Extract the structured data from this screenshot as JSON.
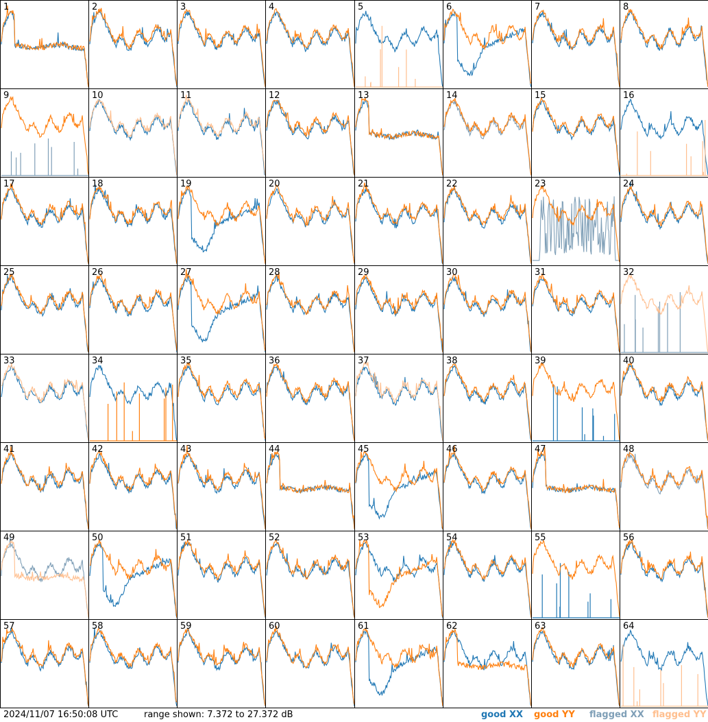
{
  "footer": {
    "timestamp": "2024/11/07 16:50:08 UTC",
    "range_text": "range shown: 7.372 to 27.372 dB"
  },
  "legend": {
    "good_xx": "good XX",
    "good_yy": "good YY",
    "flagged_xx": "flagged XX",
    "flagged_yy": "flagged YY"
  },
  "colors": {
    "good_xx": "#1f77b4",
    "good_yy": "#ff7f0e",
    "flagged_xx": "#7f9fb7",
    "flagged_yy": "#ffbf8f"
  },
  "chart_data": {
    "type": "line",
    "ylim": [
      7.372,
      27.372
    ],
    "grid": false,
    "legend_position": "bottom-right",
    "panels": [
      {
        "id": "1",
        "xx": "good",
        "yy": "good",
        "xx_shape": "drop",
        "yy_shape": "drop"
      },
      {
        "id": "2",
        "xx": "good",
        "yy": "good",
        "xx_shape": "normal",
        "yy_shape": "normal"
      },
      {
        "id": "3",
        "xx": "good",
        "yy": "good",
        "xx_shape": "normal",
        "yy_shape": "normal"
      },
      {
        "id": "4",
        "xx": "good",
        "yy": "good",
        "xx_shape": "normal",
        "yy_shape": "normal"
      },
      {
        "id": "5",
        "xx": "good",
        "yy": "flagged",
        "xx_shape": "normal",
        "yy_shape": "spikes"
      },
      {
        "id": "6",
        "xx": "good",
        "yy": "good",
        "xx_shape": "dip",
        "yy_shape": "normal"
      },
      {
        "id": "7",
        "xx": "good",
        "yy": "good",
        "xx_shape": "normal",
        "yy_shape": "normal"
      },
      {
        "id": "8",
        "xx": "good",
        "yy": "good",
        "xx_shape": "normal",
        "yy_shape": "normal"
      },
      {
        "id": "9",
        "xx": "flagged",
        "yy": "good",
        "xx_shape": "spikes",
        "yy_shape": "normal"
      },
      {
        "id": "10",
        "xx": "good",
        "yy": "flagged",
        "xx_shape": "normal",
        "yy_shape": "normal"
      },
      {
        "id": "11",
        "xx": "good",
        "yy": "flagged",
        "xx_shape": "normal",
        "yy_shape": "normal"
      },
      {
        "id": "12",
        "xx": "good",
        "yy": "good",
        "xx_shape": "normal",
        "yy_shape": "normal"
      },
      {
        "id": "13",
        "xx": "good",
        "yy": "good",
        "xx_shape": "drop",
        "yy_shape": "drop"
      },
      {
        "id": "14",
        "xx": "flagged",
        "yy": "good",
        "xx_shape": "normal",
        "yy_shape": "normal"
      },
      {
        "id": "15",
        "xx": "good",
        "yy": "good",
        "xx_shape": "normal",
        "yy_shape": "normal"
      },
      {
        "id": "16",
        "xx": "good",
        "yy": "flagged",
        "xx_shape": "normal",
        "yy_shape": "spikes"
      },
      {
        "id": "17",
        "xx": "good",
        "yy": "good",
        "xx_shape": "normal",
        "yy_shape": "normal"
      },
      {
        "id": "18",
        "xx": "good",
        "yy": "good",
        "xx_shape": "normal",
        "yy_shape": "normal"
      },
      {
        "id": "19",
        "xx": "good",
        "yy": "good",
        "xx_shape": "dip",
        "yy_shape": "normal"
      },
      {
        "id": "20",
        "xx": "good",
        "yy": "good",
        "xx_shape": "normal",
        "yy_shape": "normal"
      },
      {
        "id": "21",
        "xx": "good",
        "yy": "good",
        "xx_shape": "normal",
        "yy_shape": "normal"
      },
      {
        "id": "22",
        "xx": "good",
        "yy": "good",
        "xx_shape": "normal",
        "yy_shape": "normal"
      },
      {
        "id": "23",
        "xx": "flagged",
        "yy": "good",
        "xx_shape": "noise",
        "yy_shape": "normal"
      },
      {
        "id": "24",
        "xx": "good",
        "yy": "good",
        "xx_shape": "normal",
        "yy_shape": "normal"
      },
      {
        "id": "25",
        "xx": "good",
        "yy": "good",
        "xx_shape": "normal",
        "yy_shape": "normal"
      },
      {
        "id": "26",
        "xx": "good",
        "yy": "good",
        "xx_shape": "normal",
        "yy_shape": "normal"
      },
      {
        "id": "27",
        "xx": "good",
        "yy": "good",
        "xx_shape": "dip",
        "yy_shape": "normal"
      },
      {
        "id": "28",
        "xx": "good",
        "yy": "good",
        "xx_shape": "normal",
        "yy_shape": "normal"
      },
      {
        "id": "29",
        "xx": "good",
        "yy": "good",
        "xx_shape": "normal",
        "yy_shape": "normal"
      },
      {
        "id": "30",
        "xx": "good",
        "yy": "good",
        "xx_shape": "normal",
        "yy_shape": "normal"
      },
      {
        "id": "31",
        "xx": "good",
        "yy": "good",
        "xx_shape": "normal",
        "yy_shape": "normal"
      },
      {
        "id": "32",
        "xx": "flagged",
        "yy": "flagged",
        "xx_shape": "spikes",
        "yy_shape": "normal"
      },
      {
        "id": "33",
        "xx": "good",
        "yy": "flagged",
        "xx_shape": "normal",
        "yy_shape": "normal"
      },
      {
        "id": "34",
        "xx": "good",
        "yy": "good",
        "xx_shape": "normal",
        "yy_shape": "spikes"
      },
      {
        "id": "35",
        "xx": "good",
        "yy": "good",
        "xx_shape": "normal",
        "yy_shape": "normal"
      },
      {
        "id": "36",
        "xx": "good",
        "yy": "good",
        "xx_shape": "normal",
        "yy_shape": "normal"
      },
      {
        "id": "37",
        "xx": "good",
        "yy": "flagged",
        "xx_shape": "normal",
        "yy_shape": "normal"
      },
      {
        "id": "38",
        "xx": "good",
        "yy": "good",
        "xx_shape": "normal",
        "yy_shape": "normal"
      },
      {
        "id": "39",
        "xx": "good",
        "yy": "good",
        "xx_shape": "spikes",
        "yy_shape": "normal"
      },
      {
        "id": "40",
        "xx": "good",
        "yy": "good",
        "xx_shape": "normal",
        "yy_shape": "normal"
      },
      {
        "id": "41",
        "xx": "good",
        "yy": "good",
        "xx_shape": "normal",
        "yy_shape": "normal"
      },
      {
        "id": "42",
        "xx": "good",
        "yy": "good",
        "xx_shape": "normal",
        "yy_shape": "normal"
      },
      {
        "id": "43",
        "xx": "good",
        "yy": "good",
        "xx_shape": "normal",
        "yy_shape": "normal"
      },
      {
        "id": "44",
        "xx": "good",
        "yy": "good",
        "xx_shape": "drop",
        "yy_shape": "drop"
      },
      {
        "id": "45",
        "xx": "good",
        "yy": "good",
        "xx_shape": "dip",
        "yy_shape": "normal"
      },
      {
        "id": "46",
        "xx": "good",
        "yy": "good",
        "xx_shape": "normal",
        "yy_shape": "normal"
      },
      {
        "id": "47",
        "xx": "good",
        "yy": "good",
        "xx_shape": "drop",
        "yy_shape": "drop"
      },
      {
        "id": "48",
        "xx": "flagged",
        "yy": "good",
        "xx_shape": "normal",
        "yy_shape": "normal"
      },
      {
        "id": "49",
        "xx": "flagged",
        "yy": "flagged",
        "xx_shape": "normal",
        "yy_shape": "drop"
      },
      {
        "id": "50",
        "xx": "good",
        "yy": "good",
        "xx_shape": "dip",
        "yy_shape": "normal"
      },
      {
        "id": "51",
        "xx": "good",
        "yy": "good",
        "xx_shape": "normal",
        "yy_shape": "normal"
      },
      {
        "id": "52",
        "xx": "good",
        "yy": "good",
        "xx_shape": "normal",
        "yy_shape": "normal"
      },
      {
        "id": "53",
        "xx": "good",
        "yy": "good",
        "xx_shape": "normal",
        "yy_shape": "dip"
      },
      {
        "id": "54",
        "xx": "good",
        "yy": "good",
        "xx_shape": "normal",
        "yy_shape": "normal"
      },
      {
        "id": "55",
        "xx": "good",
        "yy": "good",
        "xx_shape": "spikes",
        "yy_shape": "normal"
      },
      {
        "id": "56",
        "xx": "good",
        "yy": "good",
        "xx_shape": "normal",
        "yy_shape": "normal"
      },
      {
        "id": "57",
        "xx": "good",
        "yy": "good",
        "xx_shape": "normal",
        "yy_shape": "normal"
      },
      {
        "id": "58",
        "xx": "good",
        "yy": "good",
        "xx_shape": "normal",
        "yy_shape": "normal"
      },
      {
        "id": "59",
        "xx": "good",
        "yy": "good",
        "xx_shape": "normal",
        "yy_shape": "normal"
      },
      {
        "id": "60",
        "xx": "good",
        "yy": "good",
        "xx_shape": "normal",
        "yy_shape": "normal"
      },
      {
        "id": "61",
        "xx": "good",
        "yy": "good",
        "xx_shape": "dip",
        "yy_shape": "normal"
      },
      {
        "id": "62",
        "xx": "good",
        "yy": "good",
        "xx_shape": "normal",
        "yy_shape": "drop"
      },
      {
        "id": "63",
        "xx": "good",
        "yy": "good",
        "xx_shape": "normal",
        "yy_shape": "normal"
      },
      {
        "id": "64",
        "xx": "good",
        "yy": "flagged",
        "xx_shape": "normal",
        "yy_shape": "spikes"
      }
    ]
  }
}
